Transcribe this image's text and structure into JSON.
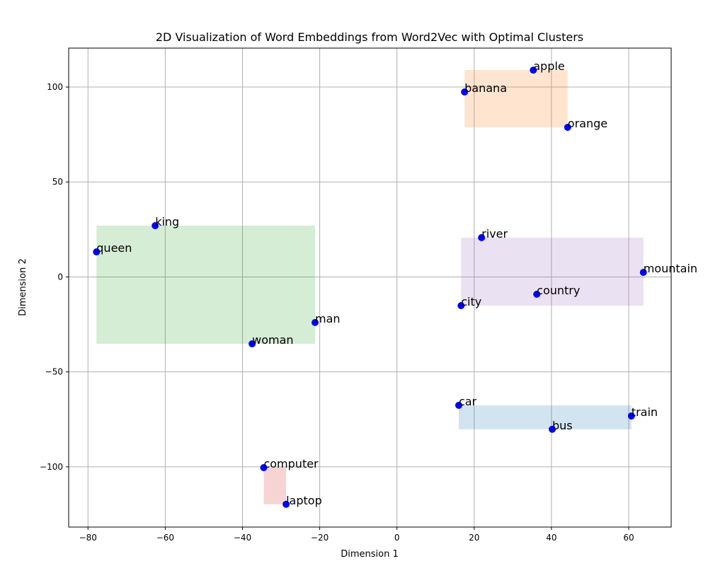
{
  "chart_data": {
    "type": "scatter",
    "title": "2D Visualization of Word Embeddings from Word2Vec with Optimal Clusters",
    "xlabel": "Dimension 1",
    "ylabel": "Dimension 2",
    "xlim": [
      -85,
      71
    ],
    "ylim": [
      -131.7,
      120.5
    ],
    "xticks": [
      -80,
      -60,
      -40,
      -20,
      0,
      20,
      40,
      60
    ],
    "yticks": [
      -100,
      -50,
      0,
      50,
      100
    ],
    "grid": true,
    "point_color": "#0000ff",
    "points": [
      {
        "label": "apple",
        "x": 35.3,
        "y": 108.9,
        "cluster": 0
      },
      {
        "label": "banana",
        "x": 17.5,
        "y": 97.4,
        "cluster": 0
      },
      {
        "label": "orange",
        "x": 44.2,
        "y": 78.8,
        "cluster": 0
      },
      {
        "label": "king",
        "x": -62.6,
        "y": 27.0,
        "cluster": 1
      },
      {
        "label": "queen",
        "x": -77.8,
        "y": 13.2,
        "cluster": 1
      },
      {
        "label": "man",
        "x": -21.2,
        "y": -24.0,
        "cluster": 1
      },
      {
        "label": "woman",
        "x": -37.5,
        "y": -35.2,
        "cluster": 1
      },
      {
        "label": "river",
        "x": 21.9,
        "y": 20.7,
        "cluster": 2
      },
      {
        "label": "mountain",
        "x": 63.8,
        "y": 2.4,
        "cluster": 2
      },
      {
        "label": "country",
        "x": 36.2,
        "y": -9.1,
        "cluster": 2
      },
      {
        "label": "city",
        "x": 16.6,
        "y": -15.1,
        "cluster": 2
      },
      {
        "label": "car",
        "x": 16.0,
        "y": -67.6,
        "cluster": 3
      },
      {
        "label": "train",
        "x": 60.7,
        "y": -73.2,
        "cluster": 3
      },
      {
        "label": "bus",
        "x": 40.2,
        "y": -80.2,
        "cluster": 3
      },
      {
        "label": "computer",
        "x": -34.5,
        "y": -100.4,
        "cluster": 4
      },
      {
        "label": "laptop",
        "x": -28.7,
        "y": -119.7,
        "cluster": 4
      }
    ],
    "cluster_colors": [
      "#ff7f0e",
      "#2ca02c",
      "#9467bd",
      "#1f77b4",
      "#d62728"
    ],
    "cluster_alpha": 0.2
  }
}
